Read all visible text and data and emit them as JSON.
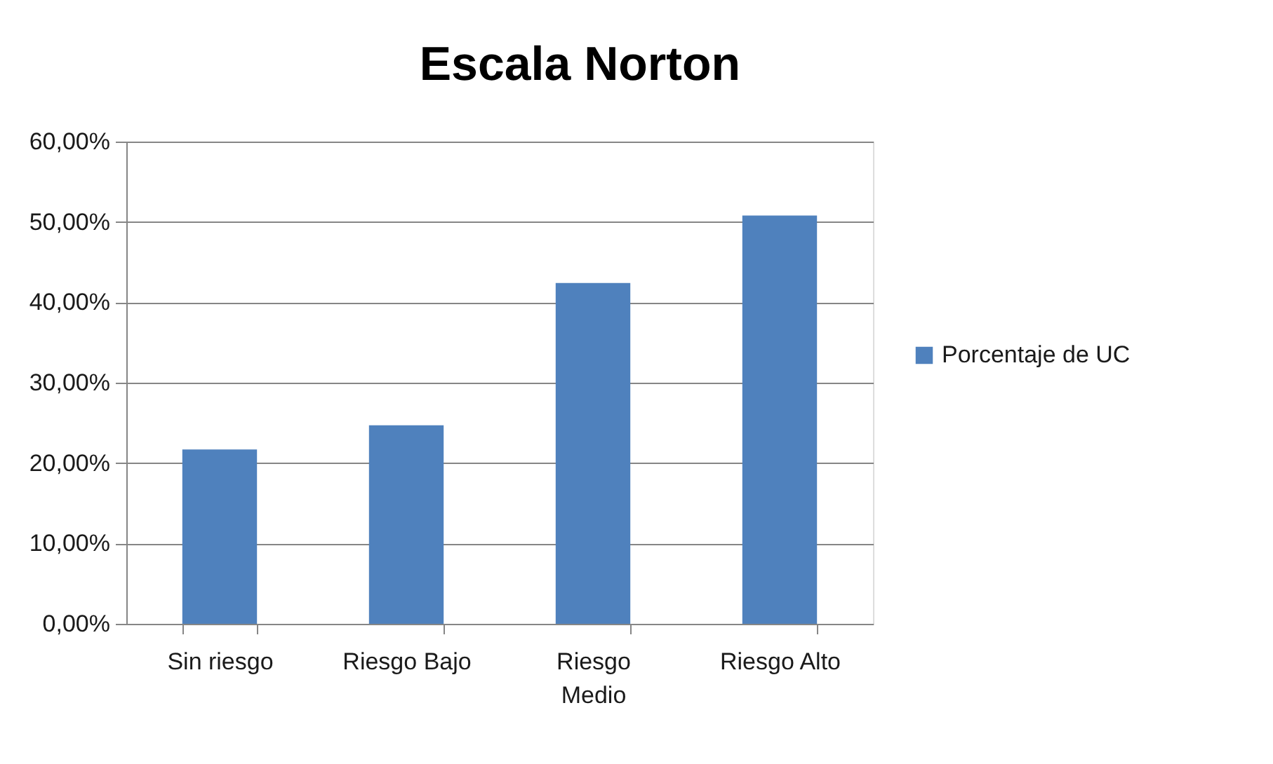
{
  "chart_data": {
    "type": "bar",
    "title": "Escala Norton",
    "categories": [
      "Sin riesgo",
      "Riesgo Bajo",
      "Riesgo Medio",
      "Riesgo Alto"
    ],
    "series": [
      {
        "name": "Porcentaje de UC",
        "color": "#4f81bd",
        "values": [
          21.7,
          24.7,
          42.4,
          50.8
        ]
      }
    ],
    "ylim": [
      0,
      60
    ],
    "yticks": [
      {
        "value": 0,
        "label": "0,00%"
      },
      {
        "value": 10,
        "label": "10,00%"
      },
      {
        "value": 20,
        "label": "20,00%"
      },
      {
        "value": 30,
        "label": "30,00%"
      },
      {
        "value": 40,
        "label": "40,00%"
      },
      {
        "value": 50,
        "label": "50,00%"
      },
      {
        "value": 60,
        "label": "60,00%"
      }
    ],
    "grid": "y",
    "legend": "right"
  }
}
